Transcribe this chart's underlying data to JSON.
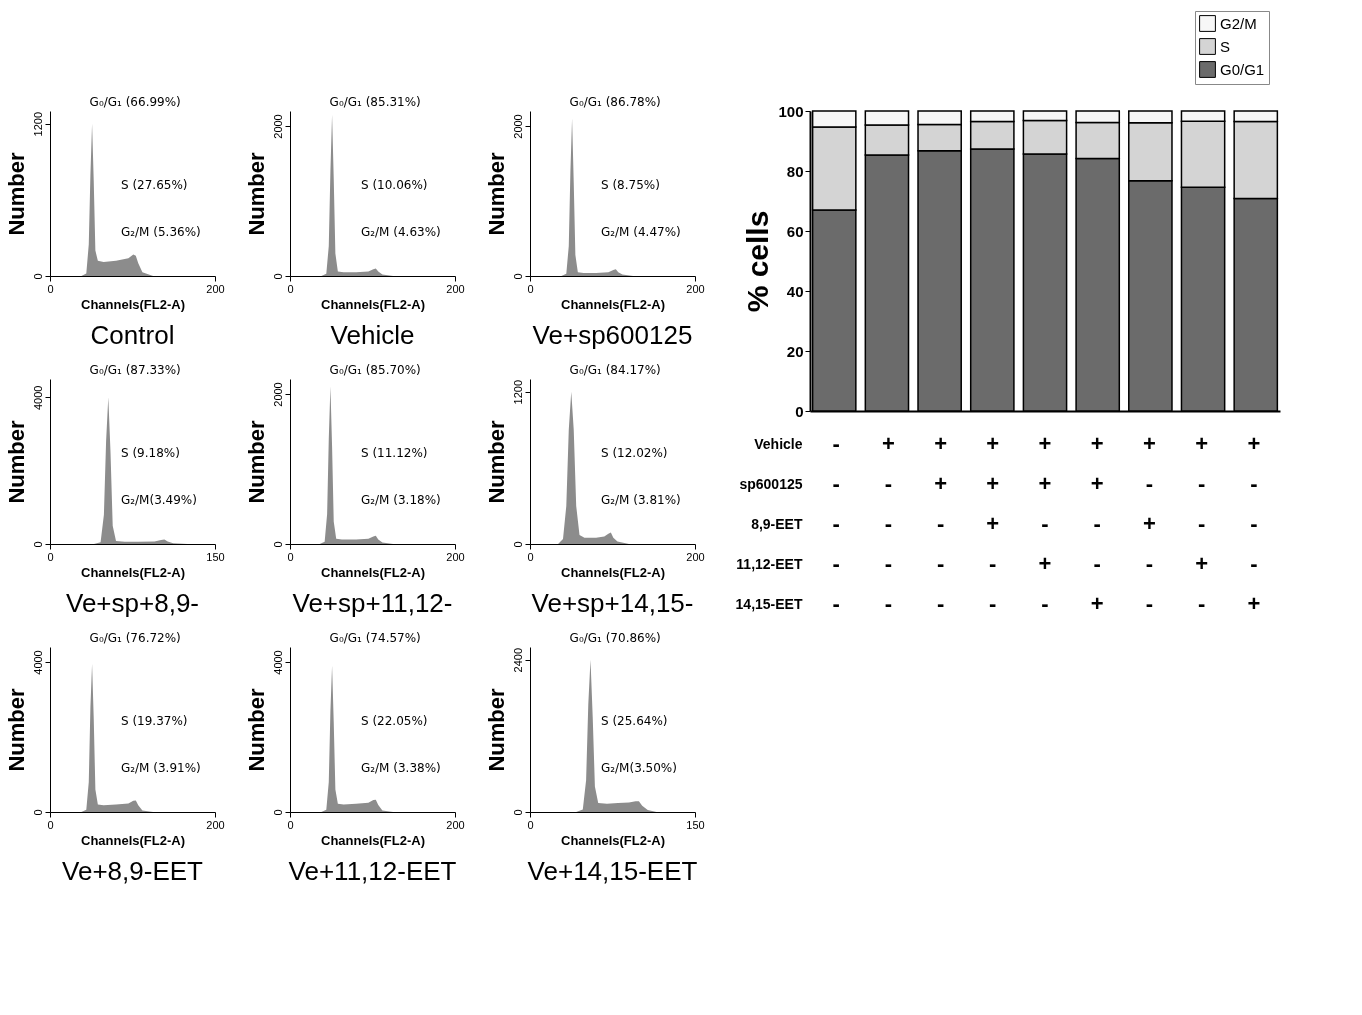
{
  "chart_data": [
    {
      "type": "area",
      "title": "Control",
      "xlabel": "Channels(FL2-A)",
      "ylabel": "Number",
      "color": "#8c8c8c",
      "xlim": [
        0,
        200
      ],
      "xticks": [
        0,
        200
      ],
      "ylim": [
        0,
        1300
      ],
      "yticks": [
        0,
        1200
      ],
      "x": [
        0,
        38,
        44,
        47,
        49,
        51,
        53,
        55,
        58,
        65,
        80,
        95,
        101,
        104,
        107,
        112,
        125,
        200
      ],
      "values": [
        0,
        0,
        20,
        250,
        800,
        1200,
        750,
        200,
        120,
        110,
        120,
        140,
        170,
        160,
        100,
        30,
        0,
        0
      ],
      "annotations": [
        "G₀/G₁ (66.99%)",
        "S (27.65%)",
        "G₂/M (5.36%)"
      ]
    },
    {
      "type": "area",
      "title": "Vehicle",
      "xlabel": "Channels(FL2-A)",
      "ylabel": "Number",
      "color": "#8c8c8c",
      "xlim": [
        0,
        200
      ],
      "xticks": [
        0,
        200
      ],
      "ylim": [
        0,
        2200
      ],
      "yticks": [
        0,
        2000
      ],
      "x": [
        0,
        38,
        44,
        47,
        49,
        51,
        53,
        55,
        58,
        65,
        80,
        95,
        101,
        104,
        107,
        112,
        125,
        200
      ],
      "values": [
        0,
        0,
        30,
        400,
        1400,
        2150,
        1300,
        300,
        60,
        50,
        50,
        60,
        90,
        100,
        60,
        20,
        0,
        0
      ],
      "annotations": [
        "G₀/G₁ (85.31%)",
        "S (10.06%)",
        "G₂/M (4.63%)"
      ]
    },
    {
      "type": "area",
      "title": "Ve+sp600125",
      "xlabel": "Channels(FL2-A)",
      "ylabel": "Number",
      "color": "#8c8c8c",
      "xlim": [
        0,
        200
      ],
      "xticks": [
        0,
        200
      ],
      "ylim": [
        0,
        2200
      ],
      "yticks": [
        0,
        2000
      ],
      "x": [
        0,
        38,
        44,
        47,
        49,
        51,
        53,
        55,
        58,
        65,
        80,
        95,
        101,
        104,
        107,
        112,
        125,
        200
      ],
      "values": [
        0,
        0,
        30,
        400,
        1400,
        2100,
        1250,
        280,
        50,
        40,
        40,
        50,
        80,
        90,
        50,
        20,
        0,
        0
      ],
      "annotations": [
        "G₀/G₁ (86.78%)",
        "S (8.75%)",
        "G₂/M (4.47%)"
      ]
    },
    {
      "type": "area",
      "title": "Ve+sp+8,9-",
      "xlabel": "Channels(FL2-A)",
      "ylabel": "Number",
      "color": "#8c8c8c",
      "xlim": [
        0,
        150
      ],
      "xticks": [
        0,
        150
      ],
      "ylim": [
        0,
        4500
      ],
      "yticks": [
        0,
        4000
      ],
      "x": [
        0,
        40,
        46,
        49,
        51,
        53,
        55,
        57,
        60,
        68,
        80,
        95,
        101,
        104,
        107,
        112,
        125,
        150
      ],
      "values": [
        0,
        0,
        50,
        800,
        2800,
        4000,
        2500,
        500,
        80,
        60,
        60,
        70,
        110,
        120,
        70,
        20,
        0,
        0
      ],
      "annotations": [
        "G₀/G₁ (87.33%)",
        "S (9.18%)",
        "G₂/M(3.49%)"
      ]
    },
    {
      "type": "area",
      "title": "Ve+sp+11,12-",
      "xlabel": "Channels(FL2-A)",
      "ylabel": "Number",
      "color": "#8c8c8c",
      "xlim": [
        0,
        200
      ],
      "xticks": [
        0,
        200
      ],
      "ylim": [
        0,
        2200
      ],
      "yticks": [
        0,
        2000
      ],
      "x": [
        0,
        36,
        42,
        45,
        47,
        49,
        51,
        53,
        56,
        63,
        80,
        95,
        101,
        104,
        107,
        112,
        125,
        200
      ],
      "values": [
        0,
        0,
        30,
        400,
        1400,
        2100,
        1300,
        300,
        70,
        60,
        60,
        70,
        100,
        110,
        60,
        20,
        0,
        0
      ],
      "annotations": [
        "G₀/G₁ (85.70%)",
        "S (11.12%)",
        "G₂/M (3.18%)"
      ]
    },
    {
      "type": "area",
      "title": "Ve+sp+14,15-",
      "xlabel": "Channels(FL2-A)",
      "ylabel": "Number",
      "color": "#8c8c8c",
      "xlim": [
        0,
        200
      ],
      "xticks": [
        0,
        200
      ],
      "ylim": [
        0,
        1300
      ],
      "yticks": [
        0,
        1200
      ],
      "x": [
        0,
        34,
        40,
        44,
        47,
        50,
        53,
        56,
        60,
        66,
        80,
        90,
        95,
        98,
        101,
        106,
        120,
        200
      ],
      "values": [
        0,
        0,
        40,
        300,
        900,
        1200,
        900,
        300,
        70,
        50,
        50,
        60,
        80,
        90,
        50,
        20,
        0,
        0
      ],
      "annotations": [
        "G₀/G₁ (84.17%)",
        "S (12.02%)",
        "G₂/M (3.81%)"
      ]
    },
    {
      "type": "area",
      "title": "Ve+8,9-EET",
      "xlabel": "Channels(FL2-A)",
      "ylabel": "Number",
      "color": "#8c8c8c",
      "xlim": [
        0,
        200
      ],
      "xticks": [
        0,
        200
      ],
      "ylim": [
        0,
        4400
      ],
      "yticks": [
        0,
        4000
      ],
      "x": [
        0,
        38,
        44,
        47,
        49,
        51,
        53,
        55,
        58,
        65,
        80,
        95,
        101,
        104,
        107,
        112,
        125,
        200
      ],
      "values": [
        0,
        0,
        60,
        800,
        2800,
        3950,
        2500,
        600,
        200,
        180,
        200,
        230,
        300,
        310,
        180,
        40,
        0,
        0
      ],
      "annotations": [
        "G₀/G₁ (76.72%)",
        "S (19.37%)",
        "G₂/M (3.91%)"
      ]
    },
    {
      "type": "area",
      "title": "Ve+11,12-EET",
      "xlabel": "Channels(FL2-A)",
      "ylabel": "Number",
      "color": "#8c8c8c",
      "xlim": [
        0,
        200
      ],
      "xticks": [
        0,
        200
      ],
      "ylim": [
        0,
        4400
      ],
      "yticks": [
        0,
        4000
      ],
      "x": [
        0,
        38,
        44,
        47,
        49,
        51,
        53,
        55,
        58,
        65,
        80,
        95,
        101,
        104,
        107,
        112,
        125,
        200
      ],
      "values": [
        0,
        0,
        60,
        800,
        2700,
        3900,
        2400,
        600,
        220,
        200,
        220,
        250,
        320,
        330,
        190,
        40,
        0,
        0
      ],
      "annotations": [
        "G₀/G₁ (74.57%)",
        "S (22.05%)",
        "G₂/M (3.38%)"
      ]
    },
    {
      "type": "area",
      "title": "Ve+14,15-EET",
      "xlabel": "Channels(FL2-A)",
      "ylabel": "Number",
      "color": "#8c8c8c",
      "xlim": [
        0,
        150
      ],
      "xticks": [
        0,
        150
      ],
      "ylim": [
        0,
        2600
      ],
      "yticks": [
        0,
        2400
      ],
      "x": [
        0,
        42,
        48,
        51,
        53,
        55,
        57,
        59,
        62,
        70,
        80,
        90,
        96,
        99,
        102,
        107,
        115,
        150
      ],
      "values": [
        0,
        0,
        40,
        500,
        1700,
        2400,
        1500,
        400,
        140,
        130,
        140,
        150,
        170,
        170,
        100,
        30,
        0,
        0
      ],
      "annotations": [
        "G₀/G₁ (70.86%)",
        "S (25.64%)",
        "G₂/M(3.50%)"
      ]
    },
    {
      "type": "bar",
      "stacked": true,
      "ylabel": "% cells",
      "ylim": [
        0,
        100
      ],
      "yticks": [
        0,
        20,
        40,
        60,
        80,
        100
      ],
      "legend": "top right",
      "categories": [
        null,
        null,
        null,
        null,
        null,
        null,
        null,
        null,
        null
      ],
      "series": [
        {
          "name": "G0/G1",
          "color": "#6b6b6b",
          "values": [
            66.99,
            85.31,
            86.78,
            87.33,
            85.7,
            84.17,
            76.72,
            74.57,
            70.86
          ]
        },
        {
          "name": "S",
          "color": "#d4d4d4",
          "values": [
            27.65,
            10.06,
            8.75,
            9.18,
            11.12,
            12.02,
            19.37,
            22.05,
            25.64
          ]
        },
        {
          "name": "G2/M",
          "color": "#f7f7f7",
          "values": [
            5.36,
            4.63,
            4.47,
            3.49,
            3.18,
            3.81,
            3.91,
            3.38,
            3.5
          ]
        }
      ],
      "annotations": [
        "Vehicle - + + + + + + + +",
        "sp600125 - - + + + + - - -",
        "8,9-EET - - - + - - + - -",
        "11,12-EET - - - - + - - + -",
        "14,15-EET - - - - - + - - +"
      ]
    }
  ]
}
